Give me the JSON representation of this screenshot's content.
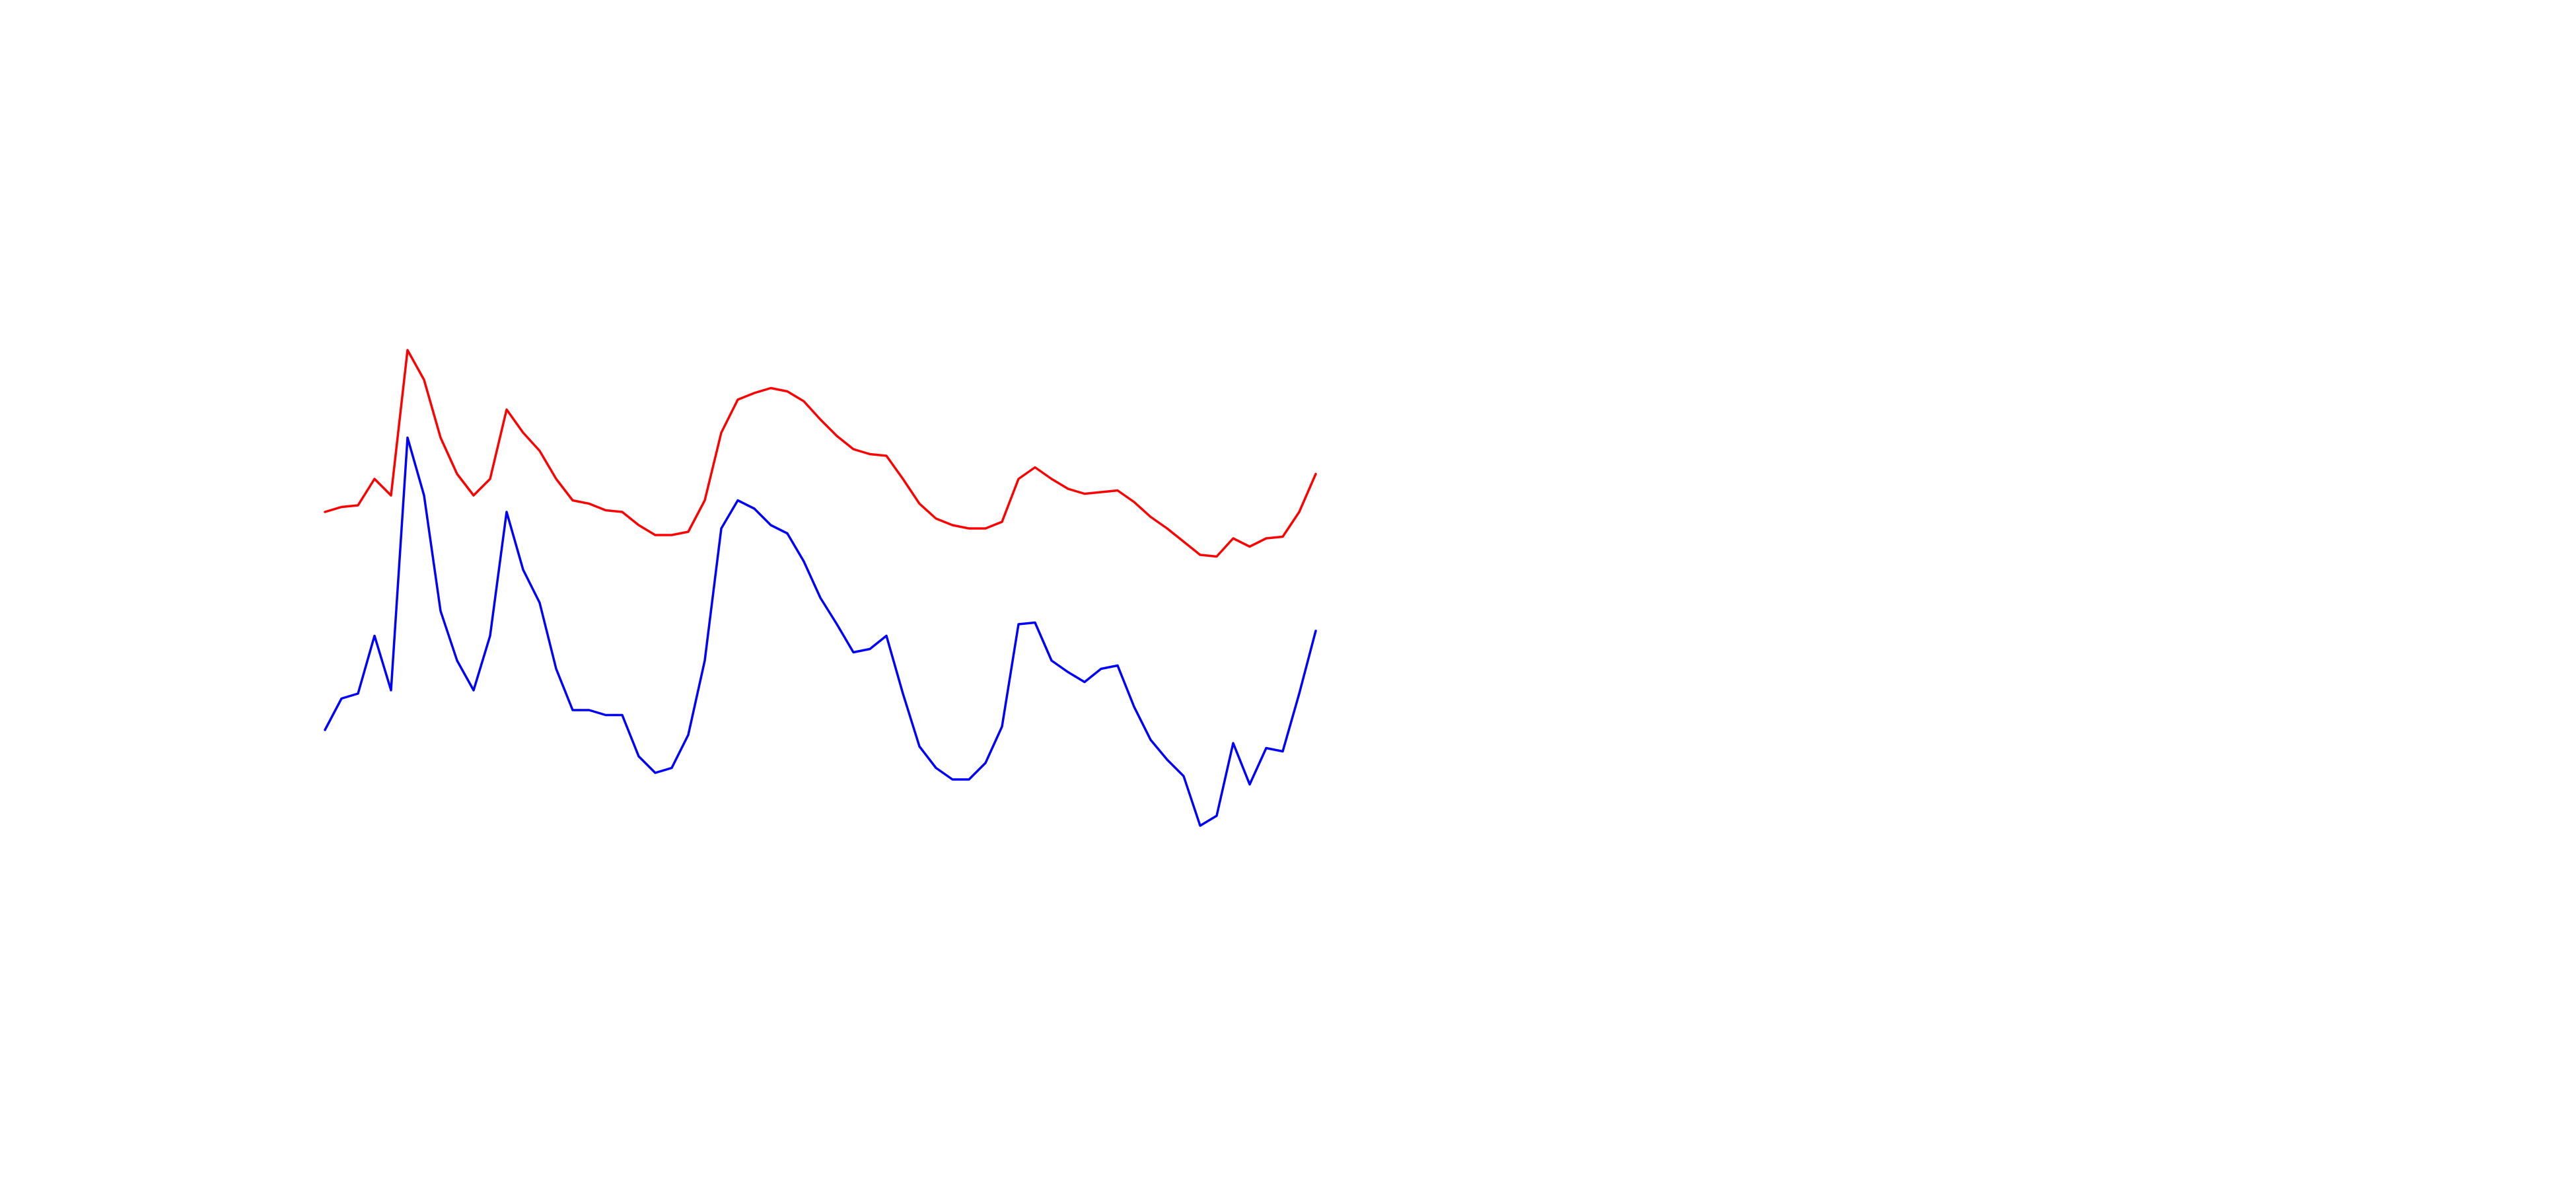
{
  "chart_data": {
    "type": "line",
    "x": [
      0,
      1,
      2,
      3,
      4,
      5,
      6,
      7,
      8,
      9,
      10,
      11,
      12,
      13,
      14,
      15,
      16,
      17,
      18,
      19,
      20,
      21,
      22,
      23,
      24,
      25,
      26,
      27,
      28,
      29,
      30,
      31,
      32,
      33,
      34,
      35,
      36,
      37,
      38,
      39,
      40,
      41,
      42,
      43,
      44,
      45,
      46,
      47,
      48,
      49,
      50,
      51,
      52,
      53,
      54,
      55,
      56,
      57,
      58,
      59,
      60
    ],
    "xlim": [
      0,
      60
    ],
    "ylim": [
      200,
      520
    ],
    "series": [
      {
        "color": "#ff0000",
        "values": [
          410,
          413,
          414,
          430,
          420,
          508,
          490,
          455,
          433,
          420,
          430,
          472,
          458,
          447,
          430,
          417,
          415,
          411,
          410,
          402,
          396,
          396,
          398,
          417,
          458,
          478,
          482,
          485,
          483,
          477,
          466,
          456,
          448,
          445,
          444,
          430,
          415,
          406,
          402,
          400,
          400,
          404,
          430,
          437,
          430,
          424,
          421,
          422,
          423,
          416,
          407,
          400,
          392,
          384,
          383,
          394,
          389,
          394,
          395,
          410,
          433
        ]
      },
      {
        "color": "#0000ff",
        "values": [
          278,
          297,
          300,
          335,
          302,
          455,
          420,
          350,
          320,
          302,
          335,
          410,
          375,
          355,
          315,
          290,
          290,
          287,
          287,
          262,
          252,
          255,
          275,
          320,
          400,
          417,
          412,
          402,
          397,
          380,
          358,
          342,
          325,
          327,
          335,
          300,
          268,
          255,
          248,
          248,
          258,
          280,
          342,
          343,
          320,
          313,
          307,
          315,
          317,
          292,
          272,
          260,
          250,
          220,
          226,
          270,
          245,
          267,
          265,
          300,
          338
        ]
      }
    ]
  }
}
